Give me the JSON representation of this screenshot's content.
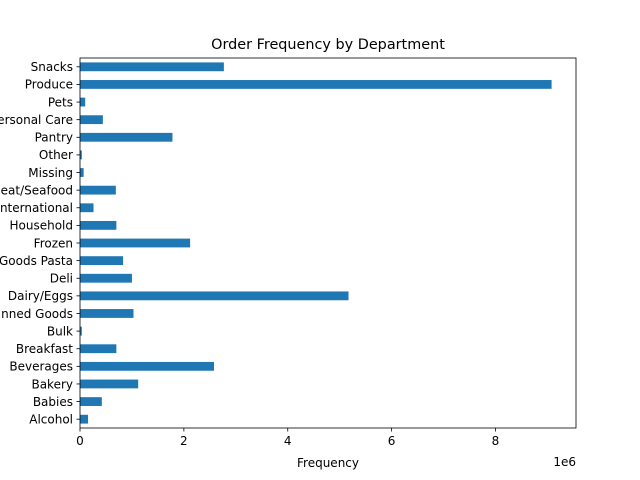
{
  "chart_data": {
    "type": "bar",
    "orientation": "horizontal",
    "title": "Order Frequency by Department",
    "xlabel": "Frequency",
    "ylabel": "",
    "x_multiplier_label": "1e6",
    "xlim": [
      0,
      9550000
    ],
    "x_ticks": [
      0,
      2,
      4,
      6,
      8
    ],
    "grid": false,
    "bar_color": "#1f77b4",
    "categories": [
      "Alcohol",
      "Babies",
      "Bakery",
      "Beverages",
      "Breakfast",
      "Bulk",
      "Canned Goods",
      "Dairy/Eggs",
      "Deli",
      "Dry Goods Pasta",
      "Frozen",
      "Household",
      "International",
      "Meat/Seafood",
      "Missing",
      "Other",
      "Pantry",
      "Personal Care",
      "Pets",
      "Produce",
      "Snacks"
    ],
    "values": [
      155000,
      420000,
      1120000,
      2580000,
      700000,
      35000,
      1030000,
      5170000,
      1000000,
      830000,
      2120000,
      700000,
      260000,
      690000,
      70000,
      35000,
      1780000,
      440000,
      100000,
      9080000,
      2770000
    ]
  }
}
